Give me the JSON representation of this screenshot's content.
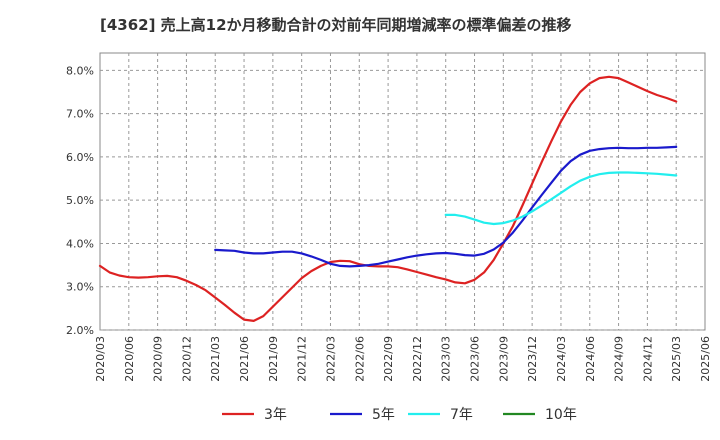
{
  "chart_data": {
    "type": "line",
    "title": "[4362]  売上高12か月移動合計の対前年同期増減率の標準偏差の推移",
    "xlabel": "",
    "ylabel": "",
    "ylim": [
      2.0,
      8.4
    ],
    "y_ticks": [
      "2.0%",
      "3.0%",
      "4.0%",
      "5.0%",
      "6.0%",
      "7.0%",
      "8.0%"
    ],
    "y_tick_values": [
      2.0,
      3.0,
      4.0,
      5.0,
      6.0,
      7.0,
      8.0
    ],
    "x_ticks": [
      "2020/03",
      "2020/06",
      "2020/09",
      "2020/12",
      "2021/03",
      "2021/06",
      "2021/09",
      "2021/12",
      "2022/03",
      "2022/06",
      "2022/09",
      "2022/12",
      "2023/03",
      "2023/06",
      "2023/09",
      "2023/12",
      "2024/03",
      "2024/06",
      "2024/09",
      "2024/12",
      "2025/03",
      "2025/06"
    ],
    "grid": true,
    "legend_position": "bottom",
    "series": [
      {
        "name": "3年",
        "color": "#dd2222",
        "x": [
          "2020/03",
          "2020/04",
          "2020/05",
          "2020/06",
          "2020/07",
          "2020/08",
          "2020/09",
          "2020/10",
          "2020/11",
          "2020/12",
          "2021/01",
          "2021/02",
          "2021/03",
          "2021/04",
          "2021/05",
          "2021/06",
          "2021/07",
          "2021/08",
          "2021/09",
          "2021/10",
          "2021/11",
          "2021/12",
          "2022/01",
          "2022/02",
          "2022/03",
          "2022/04",
          "2022/05",
          "2022/06",
          "2022/07",
          "2022/08",
          "2022/09",
          "2022/10",
          "2022/11",
          "2022/12",
          "2023/01",
          "2023/02",
          "2023/03",
          "2023/04",
          "2023/05",
          "2023/06",
          "2023/07",
          "2023/08",
          "2023/09",
          "2023/10",
          "2023/11",
          "2023/12",
          "2024/01",
          "2024/02",
          "2024/03",
          "2024/04",
          "2024/05",
          "2024/06",
          "2024/07",
          "2024/08",
          "2024/09",
          "2024/10",
          "2024/11",
          "2024/12",
          "2025/01",
          "2025/02",
          "2025/03"
        ],
        "values": [
          3.48,
          3.33,
          3.26,
          3.22,
          3.21,
          3.22,
          3.24,
          3.25,
          3.22,
          3.14,
          3.04,
          2.92,
          2.75,
          2.58,
          2.4,
          2.24,
          2.21,
          2.32,
          2.54,
          2.76,
          2.98,
          3.2,
          3.36,
          3.48,
          3.57,
          3.6,
          3.59,
          3.52,
          3.48,
          3.47,
          3.47,
          3.45,
          3.4,
          3.34,
          3.28,
          3.22,
          3.17,
          3.1,
          3.08,
          3.16,
          3.33,
          3.62,
          4.0,
          4.4,
          4.88,
          5.38,
          5.88,
          6.36,
          6.82,
          7.2,
          7.5,
          7.7,
          7.82,
          7.85,
          7.82,
          7.72,
          7.62,
          7.52,
          7.43,
          7.36,
          7.28
        ]
      },
      {
        "name": "5年",
        "color": "#1a1acc",
        "x": [
          "2021/03",
          "2021/04",
          "2021/05",
          "2021/06",
          "2021/07",
          "2021/08",
          "2021/09",
          "2021/10",
          "2021/11",
          "2021/12",
          "2022/01",
          "2022/02",
          "2022/03",
          "2022/04",
          "2022/05",
          "2022/06",
          "2022/07",
          "2022/08",
          "2022/09",
          "2022/10",
          "2022/11",
          "2022/12",
          "2023/01",
          "2023/02",
          "2023/03",
          "2023/04",
          "2023/05",
          "2023/06",
          "2023/07",
          "2023/08",
          "2023/09",
          "2023/10",
          "2023/11",
          "2023/12",
          "2024/01",
          "2024/02",
          "2024/03",
          "2024/04",
          "2024/05",
          "2024/06",
          "2024/07",
          "2024/08",
          "2024/09",
          "2024/10",
          "2024/11",
          "2024/12",
          "2025/01",
          "2025/02",
          "2025/03"
        ],
        "values": [
          3.85,
          3.84,
          3.83,
          3.79,
          3.77,
          3.77,
          3.79,
          3.81,
          3.81,
          3.77,
          3.7,
          3.62,
          3.53,
          3.48,
          3.47,
          3.48,
          3.5,
          3.53,
          3.58,
          3.63,
          3.68,
          3.72,
          3.75,
          3.77,
          3.78,
          3.76,
          3.73,
          3.72,
          3.76,
          3.86,
          4.02,
          4.25,
          4.53,
          4.83,
          5.12,
          5.4,
          5.68,
          5.9,
          6.05,
          6.14,
          6.18,
          6.2,
          6.21,
          6.2,
          6.2,
          6.21,
          6.21,
          6.22,
          6.23
        ]
      },
      {
        "name": "7年",
        "color": "#22eeee",
        "x": [
          "2023/03",
          "2023/04",
          "2023/05",
          "2023/06",
          "2023/07",
          "2023/08",
          "2023/09",
          "2023/10",
          "2023/11",
          "2023/12",
          "2024/01",
          "2024/02",
          "2024/03",
          "2024/04",
          "2024/05",
          "2024/06",
          "2024/07",
          "2024/08",
          "2024/09",
          "2024/10",
          "2024/11",
          "2024/12",
          "2025/01",
          "2025/02",
          "2025/03"
        ],
        "values": [
          4.66,
          4.66,
          4.62,
          4.55,
          4.48,
          4.45,
          4.47,
          4.53,
          4.62,
          4.74,
          4.88,
          5.02,
          5.17,
          5.32,
          5.45,
          5.54,
          5.6,
          5.63,
          5.64,
          5.64,
          5.63,
          5.62,
          5.61,
          5.59,
          5.57
        ]
      },
      {
        "name": "10年",
        "color": "#228822",
        "x": [],
        "values": []
      }
    ]
  }
}
